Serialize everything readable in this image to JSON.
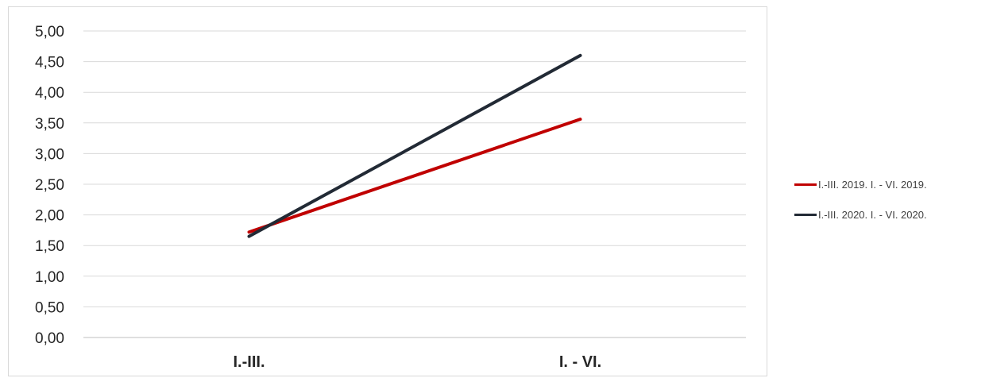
{
  "chart_data": {
    "type": "line",
    "categories": [
      "I.-III.",
      "I. - VI."
    ],
    "y_ticks": [
      "0,00",
      "0,50",
      "1,00",
      "1,50",
      "2,00",
      "2,50",
      "3,00",
      "3,50",
      "4,00",
      "4,50",
      "5,00"
    ],
    "ylim": [
      0,
      5
    ],
    "grid": true,
    "legend_position": "right",
    "series": [
      {
        "name": "I.-III. 2019. I. - VI. 2019.",
        "color": "#c00000",
        "values": [
          1.72,
          3.56
        ]
      },
      {
        "name": "I.-III. 2020. I. - VI. 2020.",
        "color": "#222a35",
        "values": [
          1.65,
          4.6
        ]
      }
    ]
  }
}
